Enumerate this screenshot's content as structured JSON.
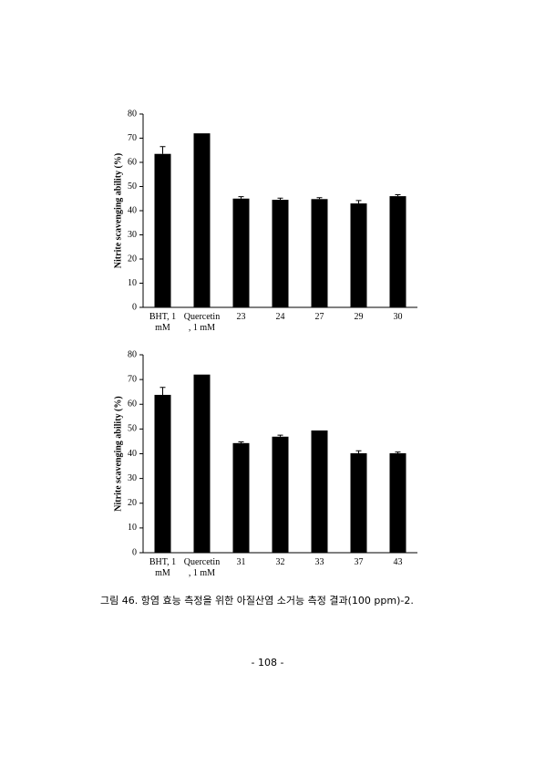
{
  "chart_data": [
    {
      "type": "bar",
      "y_label": "Nitrite scavenging ability (%)",
      "color": "#000000",
      "categories": [
        "BHT, 1 mM",
        "Quercetin , 1 mM",
        "23",
        "24",
        "27",
        "29",
        "30"
      ],
      "values": [
        63.5,
        72,
        45,
        44.5,
        44.8,
        43,
        46
      ],
      "errors": [
        3,
        null,
        0.8,
        0.7,
        0.6,
        1.2,
        0.6
      ],
      "ylim": [
        0,
        80
      ],
      "yticks": [
        0,
        10,
        20,
        30,
        40,
        50,
        60,
        70,
        80
      ]
    },
    {
      "type": "bar",
      "y_label": "Nitrite scavenging ability (%)",
      "color": "#000000",
      "categories": [
        "BHT, 1 mM",
        "Quercetin , 1 mM",
        "31",
        "32",
        "33",
        "37",
        "43"
      ],
      "values": [
        63.8,
        72,
        44.3,
        46.9,
        49.4,
        40.2,
        40.2
      ],
      "errors": [
        3,
        null,
        0.5,
        0.6,
        null,
        1,
        0.5
      ],
      "ylim": [
        0,
        80
      ],
      "yticks": [
        0,
        10,
        20,
        30,
        40,
        50,
        60,
        70,
        80
      ]
    }
  ],
  "caption": "그림 46. 항염 효능 측정을 위한 아질산염 소거능 측정 결과(100 ppm)-2.",
  "page_number": "- 108 -"
}
